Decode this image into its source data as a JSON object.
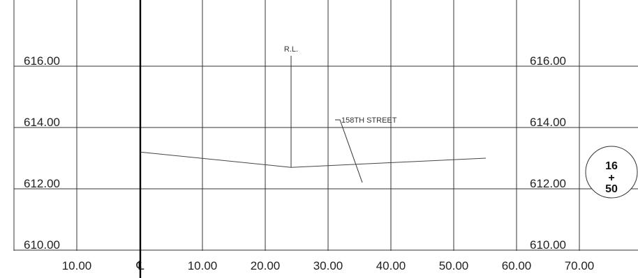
{
  "elevation_labels_left": [
    "616.00",
    "614.00",
    "612.00",
    "610.00"
  ],
  "elevation_labels_right": [
    "616.00",
    "614.00",
    "612.00",
    "610.00"
  ],
  "offset_labels": [
    "10.00",
    "10.00",
    "20.00",
    "30.00",
    "40.00",
    "50.00",
    "60.00",
    "70.00"
  ],
  "centerline_symbol": "℄",
  "annotations": {
    "rl_label": "R.L.",
    "street_label": "158TH STREET"
  },
  "station": {
    "major": "16",
    "plus": "+",
    "minor": "50"
  },
  "chart_data": {
    "type": "line",
    "xlabel": "",
    "ylabel": "",
    "xlim": [
      -20,
      70
    ],
    "ylim": [
      610,
      618
    ],
    "grid": true,
    "series": [
      {
        "x": [
          0,
          24,
          55
        ],
        "y": [
          613.2,
          612.7,
          613.0
        ]
      }
    ]
  }
}
